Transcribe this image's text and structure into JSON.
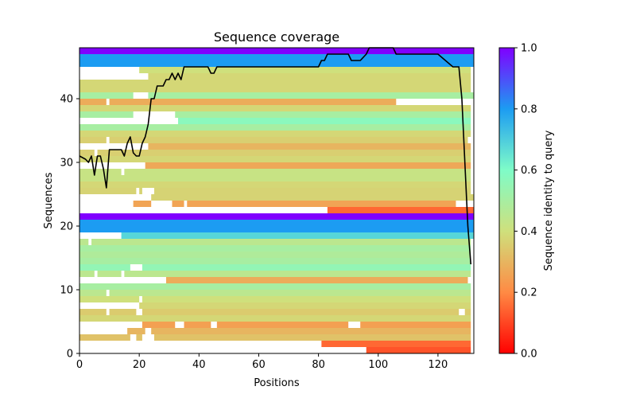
{
  "chart_data": {
    "type": "heatmap",
    "title": "Sequence coverage",
    "xlabel": "Positions",
    "ylabel": "Sequences",
    "xlim": [
      0,
      132
    ],
    "ylim": [
      0,
      48
    ],
    "xticks": [
      0,
      20,
      40,
      60,
      80,
      100,
      120
    ],
    "yticks": [
      0,
      10,
      20,
      30,
      40
    ],
    "colorbar": {
      "label": "Sequence identity to query",
      "range": [
        0.0,
        1.0
      ],
      "ticks": [
        0.0,
        0.2,
        0.4,
        0.6,
        0.8,
        1.0
      ],
      "tick_labels": [
        "0.0",
        "0.2",
        "0.4",
        "0.6",
        "0.8",
        "1.0"
      ],
      "colormap": "rainbow_r",
      "stops": [
        "#ff0000",
        "#ff8a44",
        "#cfe07c",
        "#7ffcc8",
        "#1c9cf2",
        "#8000ff"
      ]
    },
    "rows": [
      {
        "row": 0,
        "identity": 0.12,
        "segments": [
          [
            96,
            131
          ]
        ]
      },
      {
        "row": 1,
        "identity": 0.15,
        "segments": [
          [
            81,
            131
          ]
        ]
      },
      {
        "row": 2,
        "identity": 0.33,
        "segments": [
          [
            0,
            17
          ],
          [
            19,
            21
          ],
          [
            25,
            131
          ]
        ]
      },
      {
        "row": 3,
        "identity": 0.3,
        "segments": [
          [
            16,
            22
          ],
          [
            24,
            131
          ]
        ]
      },
      {
        "row": 4,
        "identity": 0.25,
        "segments": [
          [
            21,
            32
          ],
          [
            35,
            44
          ],
          [
            46,
            90
          ],
          [
            94,
            131
          ]
        ]
      },
      {
        "row": 5,
        "identity": 0.38,
        "segments": [
          [
            0,
            131
          ]
        ]
      },
      {
        "row": 6,
        "identity": 0.35,
        "segments": [
          [
            0,
            9
          ],
          [
            10,
            19
          ],
          [
            21,
            127
          ],
          [
            129,
            131
          ]
        ]
      },
      {
        "row": 7,
        "identity": 0.38,
        "segments": [
          [
            20,
            131
          ]
        ]
      },
      {
        "row": 8,
        "identity": 0.4,
        "segments": [
          [
            0,
            20
          ],
          [
            21,
            131
          ]
        ]
      },
      {
        "row": 9,
        "identity": 0.45,
        "segments": [
          [
            0,
            9
          ],
          [
            10,
            131
          ]
        ]
      },
      {
        "row": 10,
        "identity": 0.5,
        "segments": [
          [
            0,
            131
          ]
        ]
      },
      {
        "row": 11,
        "identity": 0.28,
        "segments": [
          [
            29,
            130
          ]
        ]
      },
      {
        "row": 12,
        "identity": 0.45,
        "segments": [
          [
            0,
            5
          ],
          [
            6,
            14
          ],
          [
            15,
            131
          ]
        ]
      },
      {
        "row": 13,
        "identity": 0.55,
        "segments": [
          [
            0,
            17
          ],
          [
            21,
            131
          ]
        ]
      },
      {
        "row": 14,
        "identity": 0.5,
        "segments": [
          [
            0,
            131
          ]
        ]
      },
      {
        "row": 15,
        "identity": 0.48,
        "segments": [
          [
            0,
            131
          ]
        ]
      },
      {
        "row": 16,
        "identity": 0.5,
        "segments": [
          [
            0,
            131
          ]
        ]
      },
      {
        "row": 17,
        "identity": 0.45,
        "segments": [
          [
            0,
            3
          ],
          [
            4,
            131
          ]
        ]
      },
      {
        "row": 18,
        "identity": 0.68,
        "segments": [
          [
            14,
            132
          ]
        ]
      },
      {
        "row": 19,
        "identity": 0.8,
        "segments": [
          [
            0,
            132
          ]
        ]
      },
      {
        "row": 20,
        "identity": 0.8,
        "segments": [
          [
            0,
            132
          ]
        ]
      },
      {
        "row": 21,
        "identity": 1.0,
        "segments": [
          [
            0,
            132
          ]
        ]
      },
      {
        "row": 22,
        "identity": 0.15,
        "segments": [
          [
            83,
            132
          ]
        ]
      },
      {
        "row": 23,
        "identity": 0.26,
        "segments": [
          [
            18,
            24
          ],
          [
            31,
            35
          ],
          [
            36,
            126
          ]
        ]
      },
      {
        "row": 24,
        "identity": 0.37,
        "segments": [
          [
            24,
            132
          ]
        ]
      },
      {
        "row": 25,
        "identity": 0.37,
        "segments": [
          [
            0,
            19
          ],
          [
            20,
            21
          ],
          [
            25,
            131
          ]
        ]
      },
      {
        "row": 26,
        "identity": 0.38,
        "segments": [
          [
            0,
            131
          ]
        ]
      },
      {
        "row": 27,
        "identity": 0.42,
        "segments": [
          [
            0,
            131
          ]
        ]
      },
      {
        "row": 28,
        "identity": 0.42,
        "segments": [
          [
            0,
            14
          ],
          [
            15,
            131
          ]
        ]
      },
      {
        "row": 29,
        "identity": 0.27,
        "segments": [
          [
            22,
            131
          ]
        ]
      },
      {
        "row": 30,
        "identity": 0.38,
        "segments": [
          [
            0,
            131
          ]
        ]
      },
      {
        "row": 31,
        "identity": 0.36,
        "segments": [
          [
            0,
            5
          ],
          [
            6,
            131
          ]
        ]
      },
      {
        "row": 32,
        "identity": 0.3,
        "segments": [
          [
            23,
            131
          ]
        ]
      },
      {
        "row": 33,
        "identity": 0.36,
        "segments": [
          [
            0,
            9
          ],
          [
            10,
            130
          ]
        ]
      },
      {
        "row": 34,
        "identity": 0.38,
        "segments": [
          [
            0,
            131
          ]
        ]
      },
      {
        "row": 35,
        "identity": 0.5,
        "segments": [
          [
            0,
            131
          ]
        ]
      },
      {
        "row": 36,
        "identity": 0.57,
        "segments": [
          [
            33,
            131
          ]
        ]
      },
      {
        "row": 37,
        "identity": 0.5,
        "segments": [
          [
            0,
            18
          ],
          [
            32,
            131
          ]
        ]
      },
      {
        "row": 38,
        "identity": 0.38,
        "segments": [
          [
            0,
            131
          ]
        ]
      },
      {
        "row": 39,
        "identity": 0.28,
        "segments": [
          [
            0,
            9
          ],
          [
            10,
            106
          ]
        ]
      },
      {
        "row": 40,
        "identity": 0.5,
        "segments": [
          [
            0,
            18
          ],
          [
            23,
            132
          ]
        ]
      },
      {
        "row": 41,
        "identity": 0.38,
        "segments": [
          [
            0,
            131
          ]
        ]
      },
      {
        "row": 42,
        "identity": 0.38,
        "segments": [
          [
            0,
            131
          ]
        ]
      },
      {
        "row": 43,
        "identity": 0.38,
        "segments": [
          [
            23,
            131
          ]
        ]
      },
      {
        "row": 44,
        "identity": 0.4,
        "segments": [
          [
            20,
            131
          ]
        ]
      },
      {
        "row": 45,
        "identity": 0.8,
        "segments": [
          [
            0,
            132
          ]
        ]
      },
      {
        "row": 46,
        "identity": 0.8,
        "segments": [
          [
            0,
            132
          ]
        ]
      },
      {
        "row": 47,
        "identity": 1.0,
        "segments": [
          [
            0,
            132
          ]
        ]
      }
    ],
    "coverage_line": {
      "name": "coverage",
      "color": "#000000",
      "x": [
        0,
        2,
        3,
        4,
        5,
        6,
        7,
        8,
        9,
        10,
        11,
        12,
        13,
        14,
        15,
        16,
        17,
        18,
        19,
        20,
        21,
        22,
        23,
        24,
        25,
        26,
        27,
        28,
        29,
        30,
        31,
        32,
        33,
        34,
        35,
        36,
        40,
        43,
        44,
        45,
        46,
        55,
        80,
        81,
        82,
        83,
        90,
        91,
        94,
        95,
        96,
        97,
        105,
        106,
        118,
        119,
        120,
        125,
        126,
        127,
        128,
        129,
        130,
        131
      ],
      "y": [
        31,
        30.5,
        30,
        31,
        28,
        31,
        31,
        29,
        26,
        32,
        32,
        32,
        32,
        32,
        31,
        33,
        34,
        31.5,
        31,
        31,
        33,
        34,
        36,
        40,
        40,
        42,
        42,
        42,
        43,
        43,
        44,
        43,
        44,
        43,
        45,
        45,
        45,
        45,
        44,
        44,
        45,
        45,
        45,
        46,
        46,
        47,
        47,
        46,
        46,
        46.5,
        47,
        48,
        48,
        47,
        47,
        47,
        47,
        45,
        45,
        45,
        40,
        30,
        20,
        14
      ]
    }
  }
}
